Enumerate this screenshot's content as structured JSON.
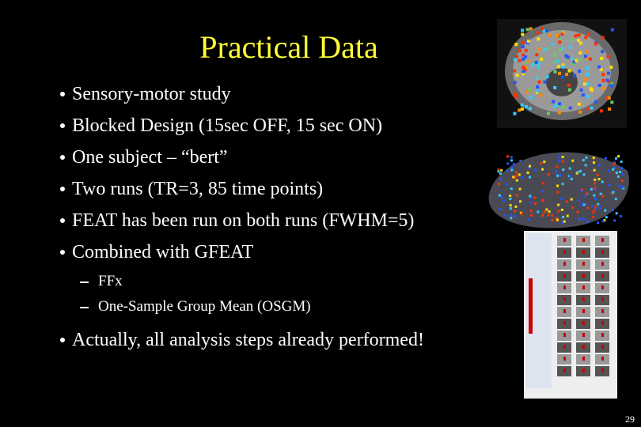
{
  "title": "Practical Data",
  "bullets": [
    "Sensory-motor study",
    "Blocked Design (15sec OFF, 15 sec ON)",
    "One subject – “bert”",
    "Two runs (TR=3, 85 time points)",
    "FEAT has been run on both runs (FWHM=5)",
    "Combined with GFEAT"
  ],
  "sub_bullets": [
    "FFx",
    "One-Sample Group Mean (OSGM)"
  ],
  "final_bullet": "Actually, all analysis steps already performed!",
  "page_number": "29"
}
